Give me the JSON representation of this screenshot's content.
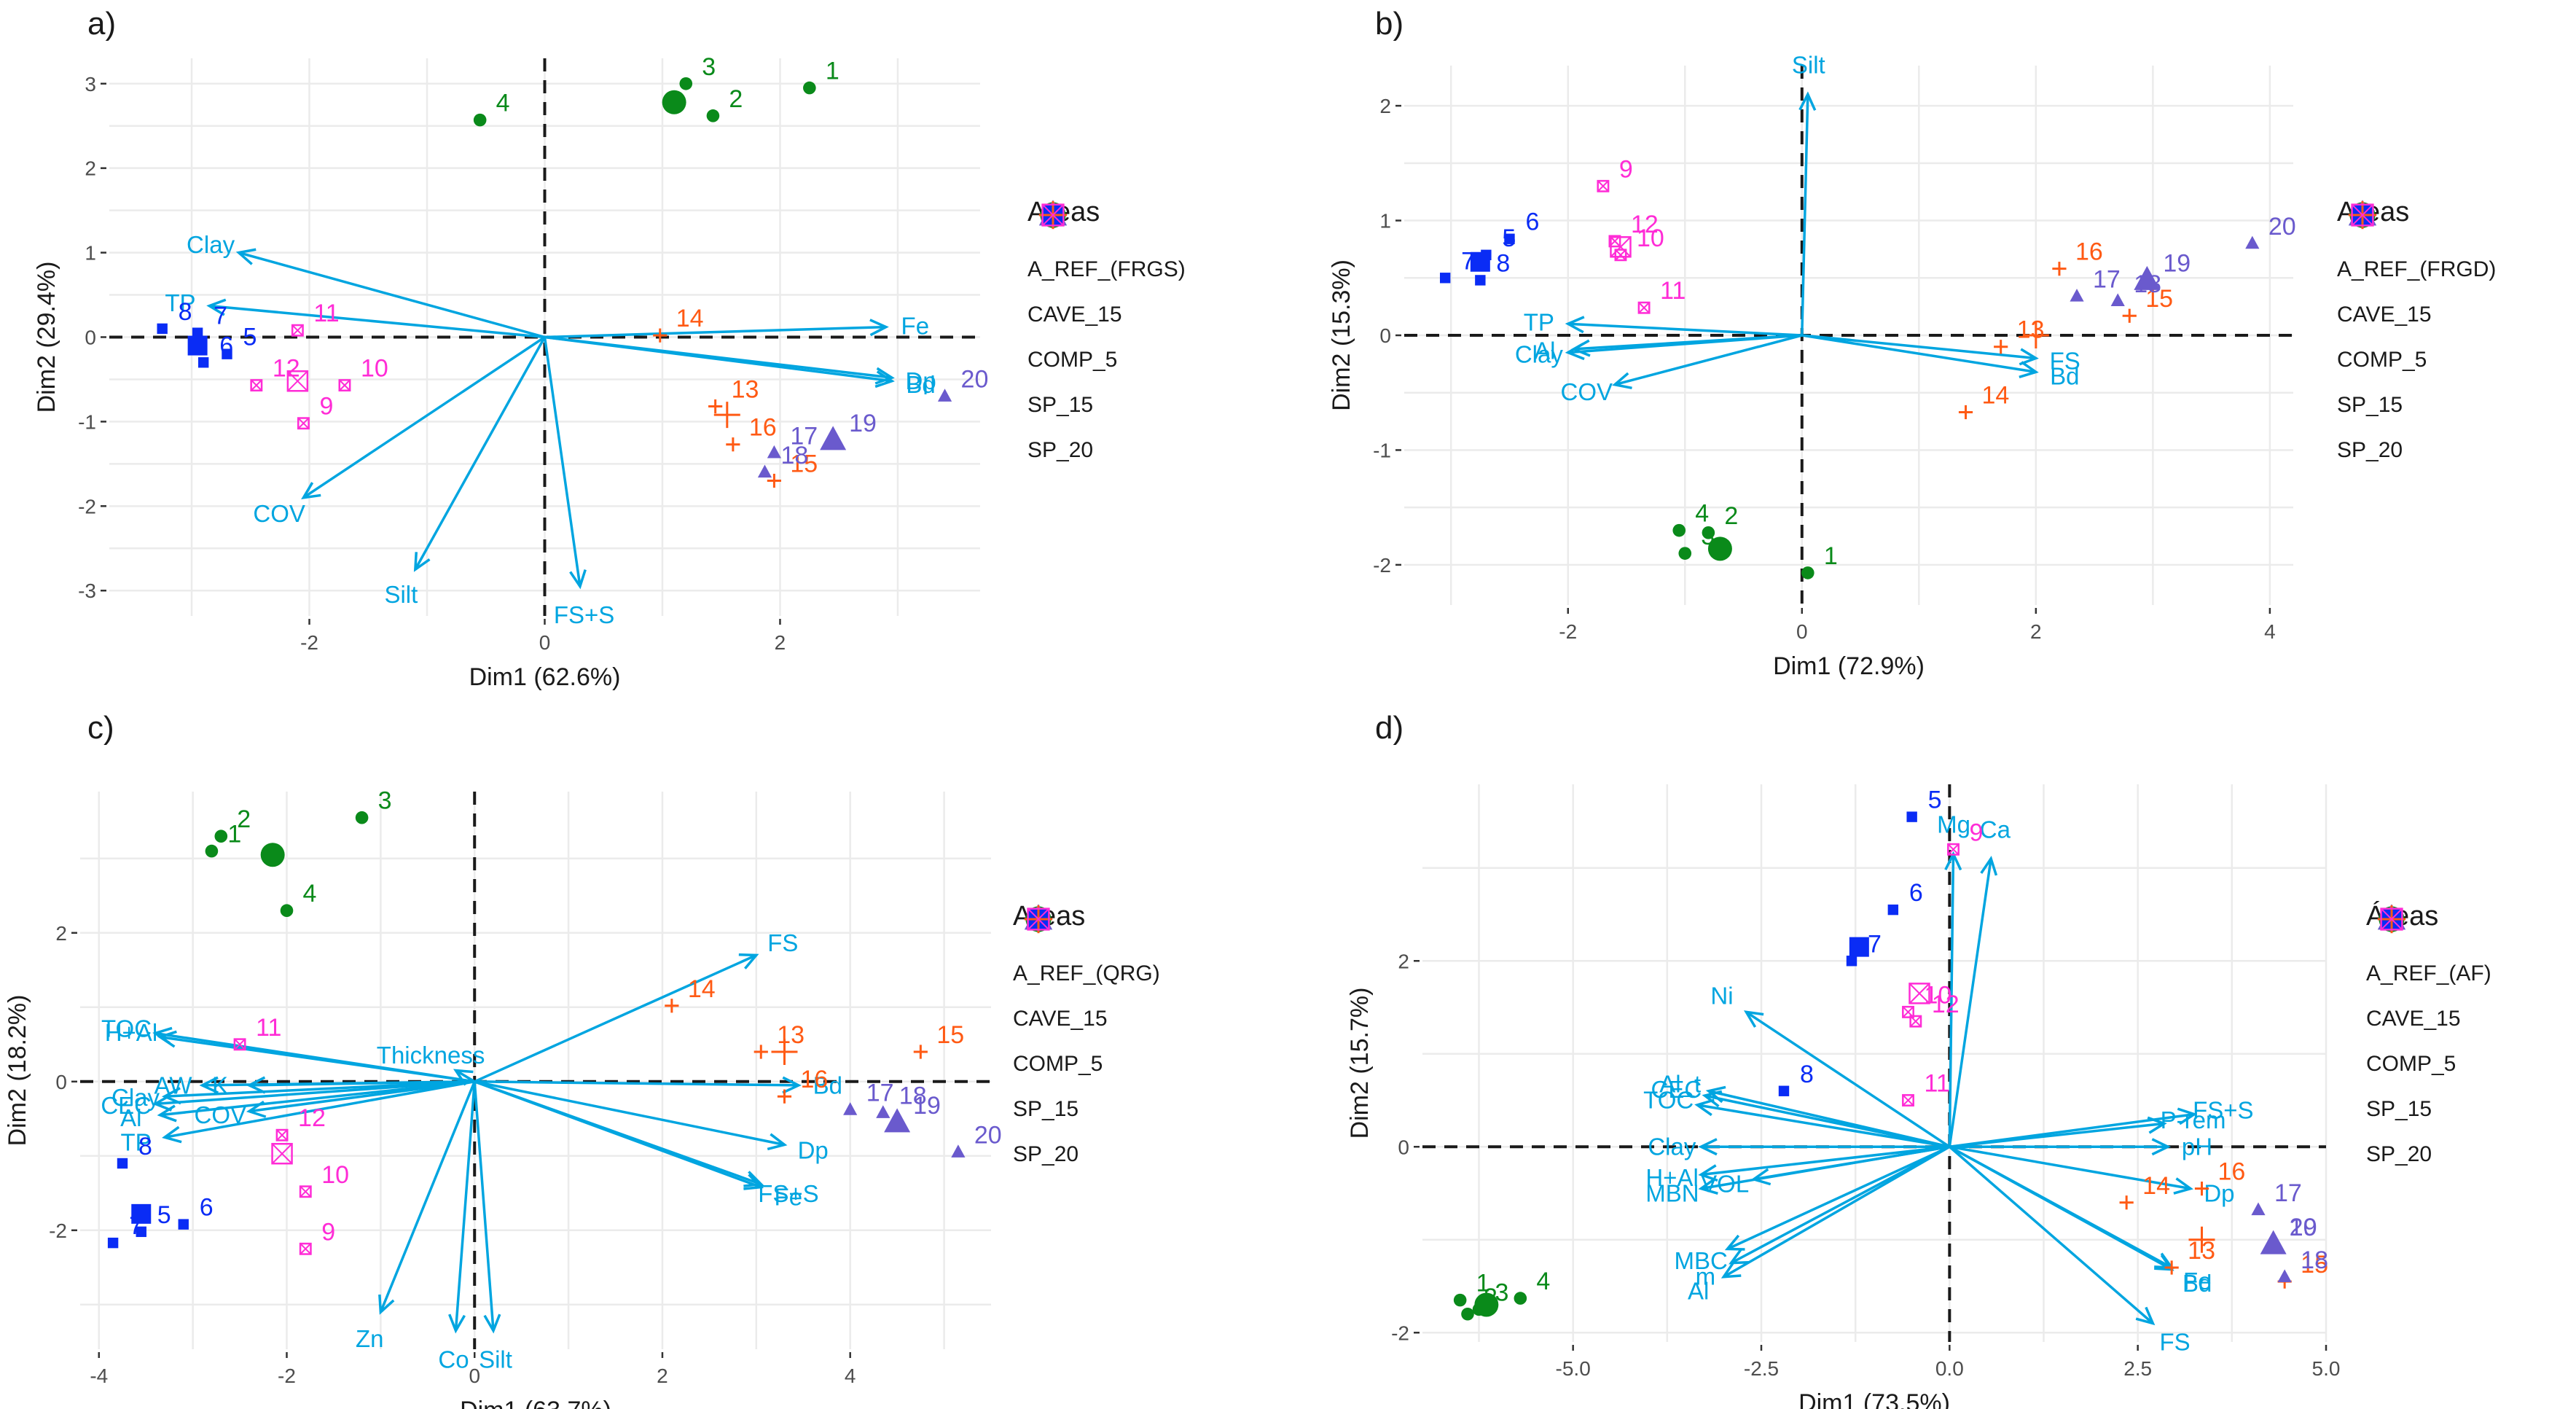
{
  "colors": {
    "A_REF": "#0a8a1a",
    "CAVE_15": "#6a5acd",
    "COMP_5": "#0a2cf5",
    "SP_15": "#ff5a14",
    "SP_20": "#ff2cd6",
    "arrow": "#00a5e0",
    "grid": "#ebebeb",
    "zero_line": "#1a1a1a"
  },
  "chart_data": [
    {
      "panel": "a)",
      "type": "scatter",
      "subtype": "pca-biplot",
      "xlabel": "Dim1 (62.6%)",
      "ylabel": "Dim2 (29.4%)",
      "xlim": [
        -3.7,
        3.7
      ],
      "ylim": [
        -3.3,
        3.3
      ],
      "xticks": [
        -2,
        0,
        2
      ],
      "yticks": [
        -3,
        -2,
        -1,
        0,
        1,
        2,
        3
      ],
      "grid": true,
      "legend": {
        "title": "Areas",
        "placement": "right",
        "entries": [
          "A_REF_(FRGS)",
          "CAVE_15",
          "COMP_5",
          "SP_15",
          "SP_20"
        ]
      },
      "individuals": [
        {
          "id": "1",
          "group": "A_REF",
          "x": 2.25,
          "y": 2.95
        },
        {
          "id": "2",
          "group": "A_REF",
          "x": 1.43,
          "y": 2.62
        },
        {
          "id": "3",
          "group": "A_REF",
          "x": 1.2,
          "y": 3.0
        },
        {
          "id": "4",
          "group": "A_REF",
          "x": -0.55,
          "y": 2.57
        },
        {
          "id": "5",
          "group": "COMP_5",
          "x": -2.7,
          "y": -0.2
        },
        {
          "id": "6",
          "group": "COMP_5",
          "x": -2.9,
          "y": -0.3
        },
        {
          "id": "7",
          "group": "COMP_5",
          "x": -2.95,
          "y": 0.05
        },
        {
          "id": "8",
          "group": "COMP_5",
          "x": -3.25,
          "y": 0.1
        },
        {
          "id": "9",
          "group": "SP_20",
          "x": -2.05,
          "y": -1.02
        },
        {
          "id": "10",
          "group": "SP_20",
          "x": -1.7,
          "y": -0.57
        },
        {
          "id": "11",
          "group": "SP_20",
          "x": -2.1,
          "y": 0.08
        },
        {
          "id": "12",
          "group": "SP_20",
          "x": -2.45,
          "y": -0.57
        },
        {
          "id": "13",
          "group": "SP_15",
          "x": 1.45,
          "y": -0.82
        },
        {
          "id": "14",
          "group": "SP_15",
          "x": 0.98,
          "y": 0.02
        },
        {
          "id": "15",
          "group": "SP_15",
          "x": 1.95,
          "y": -1.7
        },
        {
          "id": "16",
          "group": "SP_15",
          "x": 1.6,
          "y": -1.27
        },
        {
          "id": "17",
          "group": "CAVE_15",
          "x": 1.95,
          "y": -1.37
        },
        {
          "id": "18",
          "group": "CAVE_15",
          "x": 1.87,
          "y": -1.6
        },
        {
          "id": "19",
          "group": "CAVE_15",
          "x": 2.45,
          "y": -1.22
        },
        {
          "id": "20",
          "group": "CAVE_15",
          "x": 3.4,
          "y": -0.7
        }
      ],
      "centroids": [
        {
          "group": "A_REF",
          "x": 1.1,
          "y": 2.78
        },
        {
          "group": "COMP_5",
          "x": -2.95,
          "y": -0.1
        },
        {
          "group": "SP_20",
          "x": -2.1,
          "y": -0.52
        },
        {
          "group": "SP_15",
          "x": 1.55,
          "y": -0.92
        },
        {
          "group": "CAVE_15",
          "x": 2.45,
          "y": -1.22
        }
      ],
      "variables": [
        {
          "name": "Clay",
          "x": -2.6,
          "y": 1.0
        },
        {
          "name": "TP",
          "x": -2.85,
          "y": 0.37
        },
        {
          "name": "COV",
          "x": -2.05,
          "y": -1.9
        },
        {
          "name": "Silt",
          "x": -1.1,
          "y": -2.75
        },
        {
          "name": "FS+S",
          "x": 0.3,
          "y": -2.95
        },
        {
          "name": "Fe",
          "x": 2.9,
          "y": 0.12
        },
        {
          "name": "Dp",
          "x": 2.95,
          "y": -0.48
        },
        {
          "name": "Bd",
          "x": 2.95,
          "y": -0.52
        }
      ]
    },
    {
      "panel": "b)",
      "type": "scatter",
      "subtype": "pca-biplot",
      "xlabel": "Dim1 (72.9%)",
      "ylabel": "Dim2 (15.3%)",
      "xlim": [
        -3.4,
        4.2
      ],
      "ylim": [
        -2.35,
        2.35
      ],
      "xticks": [
        -2,
        0,
        2,
        4
      ],
      "yticks": [
        -2,
        -1,
        0,
        1,
        2
      ],
      "grid": true,
      "legend": {
        "title": "Areas",
        "placement": "right",
        "entries": [
          "A_REF_(FRGD)",
          "CAVE_15",
          "COMP_5",
          "SP_15",
          "SP_20"
        ]
      },
      "individuals": [
        {
          "id": "1",
          "group": "A_REF",
          "x": 0.05,
          "y": -2.07
        },
        {
          "id": "2",
          "group": "A_REF",
          "x": -0.8,
          "y": -1.72
        },
        {
          "id": "3",
          "group": "A_REF",
          "x": -1.0,
          "y": -1.9
        },
        {
          "id": "4",
          "group": "A_REF",
          "x": -1.05,
          "y": -1.7
        },
        {
          "id": "5",
          "group": "COMP_5",
          "x": -2.7,
          "y": 0.7
        },
        {
          "id": "6",
          "group": "COMP_5",
          "x": -2.5,
          "y": 0.84
        },
        {
          "id": "7",
          "group": "COMP_5",
          "x": -3.05,
          "y": 0.5
        },
        {
          "id": "8",
          "group": "COMP_5",
          "x": -2.75,
          "y": 0.48
        },
        {
          "id": "9",
          "group": "SP_20",
          "x": -1.7,
          "y": 1.3
        },
        {
          "id": "10",
          "group": "SP_20",
          "x": -1.55,
          "y": 0.7
        },
        {
          "id": "11",
          "group": "SP_20",
          "x": -1.35,
          "y": 0.24
        },
        {
          "id": "12",
          "group": "SP_20",
          "x": -1.6,
          "y": 0.82
        },
        {
          "id": "13",
          "group": "SP_15",
          "x": 1.7,
          "y": -0.1
        },
        {
          "id": "14",
          "group": "SP_15",
          "x": 1.4,
          "y": -0.67
        },
        {
          "id": "15",
          "group": "SP_15",
          "x": 2.8,
          "y": 0.17
        },
        {
          "id": "16",
          "group": "SP_15",
          "x": 2.2,
          "y": 0.58
        },
        {
          "id": "17",
          "group": "CAVE_15",
          "x": 2.35,
          "y": 0.34
        },
        {
          "id": "18",
          "group": "CAVE_15",
          "x": 2.7,
          "y": 0.3
        },
        {
          "id": "19",
          "group": "CAVE_15",
          "x": 2.95,
          "y": 0.48
        },
        {
          "id": "20",
          "group": "CAVE_15",
          "x": 3.85,
          "y": 0.8
        }
      ],
      "centroids": [
        {
          "group": "A_REF",
          "x": -0.7,
          "y": -1.86
        },
        {
          "group": "COMP_5",
          "x": -2.75,
          "y": 0.64
        },
        {
          "group": "SP_20",
          "x": -1.55,
          "y": 0.77
        },
        {
          "group": "SP_15",
          "x": 2.0,
          "y": 0.0
        },
        {
          "group": "CAVE_15",
          "x": 2.95,
          "y": 0.48
        }
      ],
      "variables": [
        {
          "name": "Silt",
          "x": 0.05,
          "y": 2.1
        },
        {
          "name": "TP",
          "x": -2.0,
          "y": 0.1
        },
        {
          "name": "Al",
          "x": -1.95,
          "y": -0.12
        },
        {
          "name": "Clay",
          "x": -2.0,
          "y": -0.15
        },
        {
          "name": "COV",
          "x": -1.6,
          "y": -0.43
        },
        {
          "name": "FS",
          "x": 2.0,
          "y": -0.2
        },
        {
          "name": "Bd",
          "x": 2.0,
          "y": -0.32
        }
      ]
    },
    {
      "panel": "c)",
      "type": "scatter",
      "subtype": "pca-biplot",
      "xlabel": "Dim1 (63.7%)",
      "ylabel": "Dim2 (18.2%)",
      "xlim": [
        -4.2,
        5.5
      ],
      "ylim": [
        -3.6,
        3.9
      ],
      "xticks": [
        -4,
        -2,
        0,
        2,
        4
      ],
      "yticks": [
        -2,
        0,
        2
      ],
      "grid": true,
      "legend": {
        "title": "Areas",
        "placement": "right",
        "entries": [
          "A_REF_(QRG)",
          "CAVE_15",
          "COMP_5",
          "SP_15",
          "SP_20"
        ]
      },
      "individuals": [
        {
          "id": "1",
          "group": "A_REF",
          "x": -2.8,
          "y": 3.1
        },
        {
          "id": "2",
          "group": "A_REF",
          "x": -2.7,
          "y": 3.3
        },
        {
          "id": "3",
          "group": "A_REF",
          "x": -1.2,
          "y": 3.55
        },
        {
          "id": "4",
          "group": "A_REF",
          "x": -2.0,
          "y": 2.3
        },
        {
          "id": "5",
          "group": "COMP_5",
          "x": -3.55,
          "y": -2.02
        },
        {
          "id": "6",
          "group": "COMP_5",
          "x": -3.1,
          "y": -1.92
        },
        {
          "id": "7",
          "group": "COMP_5",
          "x": -3.85,
          "y": -2.17
        },
        {
          "id": "8",
          "group": "COMP_5",
          "x": -3.75,
          "y": -1.1
        },
        {
          "id": "9",
          "group": "SP_20",
          "x": -1.8,
          "y": -2.25
        },
        {
          "id": "10",
          "group": "SP_20",
          "x": -1.8,
          "y": -1.48
        },
        {
          "id": "11",
          "group": "SP_20",
          "x": -2.5,
          "y": 0.5
        },
        {
          "id": "12",
          "group": "SP_20",
          "x": -2.05,
          "y": -0.72
        },
        {
          "id": "13",
          "group": "SP_15",
          "x": 3.05,
          "y": 0.4
        },
        {
          "id": "14",
          "group": "SP_15",
          "x": 2.1,
          "y": 1.02
        },
        {
          "id": "15",
          "group": "SP_15",
          "x": 4.75,
          "y": 0.4
        },
        {
          "id": "16",
          "group": "SP_15",
          "x": 3.3,
          "y": -0.2
        },
        {
          "id": "17",
          "group": "CAVE_15",
          "x": 4.0,
          "y": -0.38
        },
        {
          "id": "18",
          "group": "CAVE_15",
          "x": 4.35,
          "y": -0.42
        },
        {
          "id": "19",
          "group": "CAVE_15",
          "x": 4.5,
          "y": -0.55
        },
        {
          "id": "20",
          "group": "CAVE_15",
          "x": 5.15,
          "y": -0.95
        }
      ],
      "centroids": [
        {
          "group": "A_REF",
          "x": -2.15,
          "y": 3.05
        },
        {
          "group": "COMP_5",
          "x": -3.55,
          "y": -1.78
        },
        {
          "group": "SP_20",
          "x": -2.05,
          "y": -0.97
        },
        {
          "group": "SP_15",
          "x": 3.3,
          "y": 0.4
        },
        {
          "group": "CAVE_15",
          "x": 4.5,
          "y": -0.55
        }
      ],
      "variables": [
        {
          "name": "TOC",
          "x": -3.4,
          "y": 0.65
        },
        {
          "name": "H+Al",
          "x": -3.35,
          "y": 0.6
        },
        {
          "name": "Clay",
          "x": -3.3,
          "y": -0.2
        },
        {
          "name": "AW",
          "x": -2.9,
          "y": -0.05
        },
        {
          "name": "Al",
          "x": -3.35,
          "y": -0.45
        },
        {
          "name": "CEC",
          "x": -3.4,
          "y": -0.3
        },
        {
          "name": "TP",
          "x": -3.3,
          "y": -0.75
        },
        {
          "name": "COV",
          "x": -2.4,
          "y": -0.4
        },
        {
          "name": "K",
          "x": -2.4,
          "y": -0.05
        },
        {
          "name": "Thickness",
          "x": -0.2,
          "y": 0.15
        },
        {
          "name": "FS",
          "x": 3.0,
          "y": 1.7
        },
        {
          "name": "Bd",
          "x": 3.45,
          "y": -0.05
        },
        {
          "name": "Dp",
          "x": 3.3,
          "y": -0.85
        },
        {
          "name": "FS+S",
          "x": 3.05,
          "y": -1.38
        },
        {
          "name": "Fe",
          "x": 3.05,
          "y": -1.42
        },
        {
          "name": "Zn",
          "x": -1.0,
          "y": -3.1
        },
        {
          "name": "Co",
          "x": -0.2,
          "y": -3.35
        },
        {
          "name": "Silt",
          "x": 0.2,
          "y": -3.35
        }
      ]
    },
    {
      "panel": "d)",
      "type": "scatter",
      "subtype": "pca-biplot",
      "xlabel": "Dim1 (73.5%)",
      "ylabel": "Dim2 (15.7%)",
      "xlim": [
        -7.0,
        5.0
      ],
      "ylim": [
        -2.1,
        3.9
      ],
      "xticks": [
        -5.0,
        -2.5,
        0.0,
        2.5,
        5.0
      ],
      "yticks": [
        -2,
        0,
        2
      ],
      "grid": true,
      "legend": {
        "title": "Áreas",
        "placement": "right",
        "entries": [
          "A_REF_(AF)",
          "CAVE_15",
          "COMP_5",
          "SP_15",
          "SP_20"
        ]
      },
      "individuals": [
        {
          "id": "1",
          "group": "A_REF",
          "x": -6.5,
          "y": -1.65
        },
        {
          "id": "2",
          "group": "A_REF",
          "x": -6.4,
          "y": -1.8
        },
        {
          "id": "3",
          "group": "A_REF",
          "x": -6.25,
          "y": -1.75
        },
        {
          "id": "4",
          "group": "A_REF",
          "x": -5.7,
          "y": -1.63
        },
        {
          "id": "5",
          "group": "COMP_5",
          "x": -0.5,
          "y": 3.55
        },
        {
          "id": "6",
          "group": "COMP_5",
          "x": -0.75,
          "y": 2.55
        },
        {
          "id": "7",
          "group": "COMP_5",
          "x": -1.3,
          "y": 2.0
        },
        {
          "id": "8",
          "group": "COMP_5",
          "x": -2.2,
          "y": 0.6
        },
        {
          "id": "9",
          "group": "SP_20",
          "x": 0.05,
          "y": 3.2
        },
        {
          "id": "10",
          "group": "SP_20",
          "x": -0.55,
          "y": 1.45
        },
        {
          "id": "11",
          "group": "SP_20",
          "x": -0.55,
          "y": 0.5
        },
        {
          "id": "12",
          "group": "SP_20",
          "x": -0.45,
          "y": 1.35
        },
        {
          "id": "13",
          "group": "SP_15",
          "x": 2.95,
          "y": -1.3
        },
        {
          "id": "14",
          "group": "SP_15",
          "x": 2.35,
          "y": -0.6
        },
        {
          "id": "15",
          "group": "SP_15",
          "x": 4.45,
          "y": -1.45
        },
        {
          "id": "16",
          "group": "SP_15",
          "x": 3.35,
          "y": -0.45
        },
        {
          "id": "17",
          "group": "CAVE_15",
          "x": 4.1,
          "y": -0.68
        },
        {
          "id": "18",
          "group": "CAVE_15",
          "x": 4.45,
          "y": -1.4
        },
        {
          "id": "19",
          "group": "CAVE_15",
          "x": 4.3,
          "y": -1.05
        },
        {
          "id": "20",
          "group": "CAVE_15",
          "x": 4.3,
          "y": -1.05
        }
      ],
      "centroids": [
        {
          "group": "A_REF",
          "x": -6.15,
          "y": -1.7
        },
        {
          "group": "COMP_5",
          "x": -1.2,
          "y": 2.15
        },
        {
          "group": "SP_20",
          "x": -0.4,
          "y": 1.65
        },
        {
          "group": "SP_15",
          "x": 3.35,
          "y": -1.0
        },
        {
          "group": "CAVE_15",
          "x": 4.3,
          "y": -1.05
        }
      ],
      "variables": [
        {
          "name": "Mg",
          "x": 0.05,
          "y": 3.15
        },
        {
          "name": "Ca",
          "x": 0.55,
          "y": 3.1
        },
        {
          "name": "Ni",
          "x": -2.7,
          "y": 1.45
        },
        {
          "name": "CEC",
          "x": -3.25,
          "y": 0.55
        },
        {
          "name": "Al_t",
          "x": -3.2,
          "y": 0.6
        },
        {
          "name": "TOC",
          "x": -3.35,
          "y": 0.45
        },
        {
          "name": "Clay",
          "x": -3.3,
          "y": 0.0
        },
        {
          "name": "H+Al",
          "x": -3.3,
          "y": -0.3
        },
        {
          "name": "VOL",
          "x": -2.6,
          "y": -0.35
        },
        {
          "name": "MBN",
          "x": -3.3,
          "y": -0.45
        },
        {
          "name": "MBC",
          "x": -2.95,
          "y": -1.1
        },
        {
          "name": "m",
          "x": -2.9,
          "y": -1.25
        },
        {
          "name": "Al",
          "x": -3.0,
          "y": -1.4
        },
        {
          "name": "P-rem",
          "x": 2.85,
          "y": 0.25
        },
        {
          "name": "FS+S",
          "x": 3.25,
          "y": 0.35
        },
        {
          "name": "pH",
          "x": 2.9,
          "y": 0.0
        },
        {
          "name": "Dp",
          "x": 3.2,
          "y": -0.45
        },
        {
          "name": "Fe",
          "x": 2.95,
          "y": -1.3
        },
        {
          "name": "Bd",
          "x": 2.95,
          "y": -1.32
        },
        {
          "name": "FS",
          "x": 2.7,
          "y": -1.9
        }
      ]
    }
  ]
}
